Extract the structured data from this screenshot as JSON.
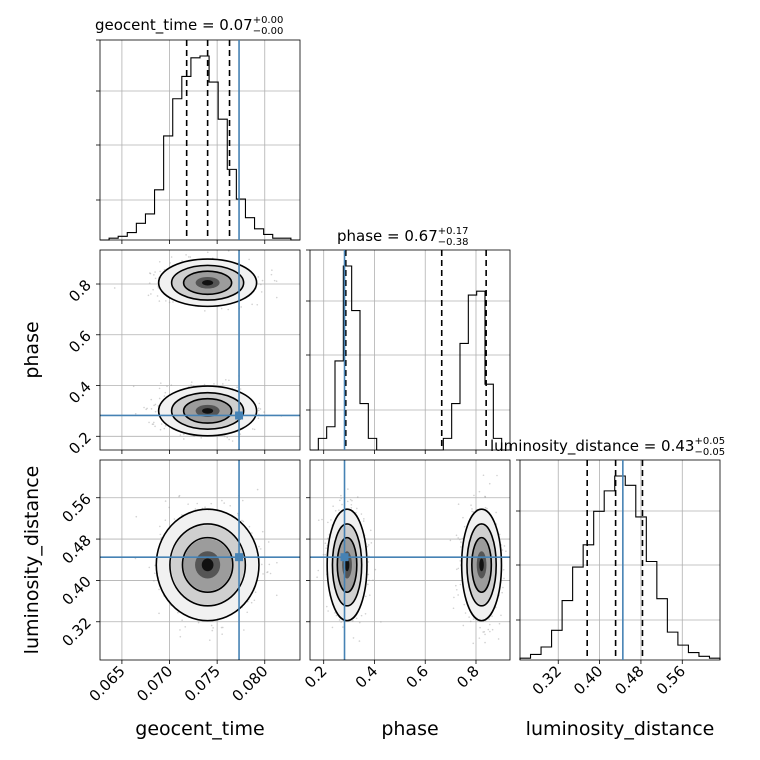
{
  "chart_data": {
    "type": "corner",
    "parameters": [
      "geocent_time",
      "phase",
      "luminosity_distance"
    ],
    "axis_labels": {
      "geocent_time": "geocent_time",
      "phase": "phase",
      "luminosity_distance": "luminosity_distance"
    },
    "ranges": {
      "geocent_time": [
        0.0627,
        0.0837
      ],
      "phase": [
        0.146,
        0.934
      ],
      "luminosity_distance": [
        0.246,
        0.633
      ]
    },
    "ticks": {
      "geocent_time": [
        {
          "v": 0.065,
          "label": "0.065"
        },
        {
          "v": 0.07,
          "label": "0.070"
        },
        {
          "v": 0.075,
          "label": "0.075"
        },
        {
          "v": 0.08,
          "label": "0.080"
        }
      ],
      "phase": [
        {
          "v": 0.2,
          "label": "0.2"
        },
        {
          "v": 0.4,
          "label": "0.4"
        },
        {
          "v": 0.6,
          "label": "0.6"
        },
        {
          "v": 0.8,
          "label": "0.8"
        }
      ],
      "luminosity_distance": [
        {
          "v": 0.32,
          "label": "0.32"
        },
        {
          "v": 0.4,
          "label": "0.40"
        },
        {
          "v": 0.48,
          "label": "0.48"
        },
        {
          "v": 0.56,
          "label": "0.56"
        }
      ]
    },
    "truths": {
      "geocent_time": 0.0773,
      "phase": 0.282,
      "luminosity_distance": 0.445
    },
    "titles": [
      {
        "param": "geocent_time",
        "text": "geocent_time = 0.07",
        "plus": "+0.00",
        "minus": "−0.00"
      },
      {
        "param": "phase",
        "text": "phase = 0.67",
        "plus": "+0.17",
        "minus": "−0.38"
      },
      {
        "param": "luminosity_distance",
        "text": "luminosity_distance = 0.43",
        "plus": "+0.05",
        "minus": "−0.05"
      }
    ],
    "quantiles": {
      "geocent_time": [
        0.0718,
        0.074,
        0.0763
      ],
      "phase": [
        0.287,
        0.665,
        0.84
      ],
      "luminosity_distance": [
        0.376,
        0.431,
        0.483
      ]
    },
    "histograms": {
      "geocent_time": {
        "edges_range": [
          0.0627,
          0.0837
        ],
        "counts": [
          0,
          1,
          2,
          4,
          9,
          14,
          27,
          56,
          76,
          88,
          98,
          99,
          85,
          65,
          38,
          22,
          12,
          6,
          3,
          1,
          1,
          0
        ]
      },
      "phase": {
        "edges_range": [
          0.146,
          0.934
        ],
        "counts": [
          0,
          6,
          12,
          46,
          95,
          72,
          24,
          6,
          0,
          0,
          0,
          0,
          0,
          0,
          0,
          0,
          6,
          24,
          55,
          80,
          82,
          34,
          6,
          0
        ]
      },
      "luminosity_distance": {
        "edges_range": [
          0.246,
          0.633
        ],
        "counts": [
          1,
          3,
          7,
          16,
          32,
          50,
          62,
          80,
          91,
          99,
          94,
          77,
          53,
          33,
          15,
          8,
          4,
          2,
          1
        ]
      }
    },
    "blobs": [
      {
        "x": "geocent_time",
        "y": "phase",
        "cx": 0.074,
        "cy": 0.805,
        "sx": 0.0021,
        "sy": 0.038,
        "rho": 0.0
      },
      {
        "x": "geocent_time",
        "y": "phase",
        "cx": 0.074,
        "cy": 0.3,
        "sx": 0.0021,
        "sy": 0.04,
        "rho": 0.0
      },
      {
        "x": "geocent_time",
        "y": "luminosity_distance",
        "cx": 0.074,
        "cy": 0.43,
        "sx": 0.0022,
        "sy": 0.044,
        "rho": -0.1
      },
      {
        "x": "phase",
        "y": "luminosity_distance",
        "cx": 0.292,
        "cy": 0.43,
        "sx": 0.032,
        "sy": 0.044,
        "rho": 0.0
      },
      {
        "x": "phase",
        "y": "luminosity_distance",
        "cx": 0.822,
        "cy": 0.43,
        "sx": 0.032,
        "sy": 0.044,
        "rho": 0.0
      }
    ],
    "grid": true,
    "colors": {
      "truth": "#4682b4",
      "hist": "#000000",
      "points": "#9a9a9a",
      "grid": "#b0b0b0"
    }
  }
}
